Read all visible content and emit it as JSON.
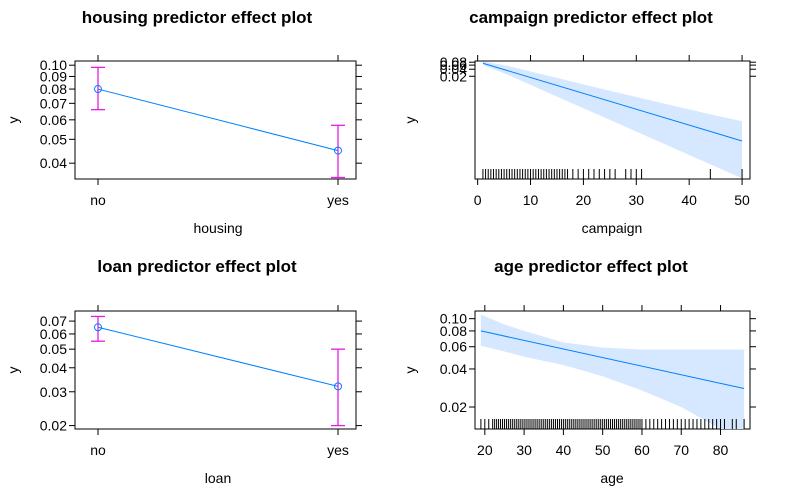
{
  "colors": {
    "line": "#0080ff",
    "point": "#0080ff",
    "errorbar": "#e020e0",
    "band": "#d6e8ff",
    "rug": "#000000"
  },
  "chart_data": [
    {
      "type": "line",
      "panel": "housing",
      "title": "housing predictor effect plot",
      "xlabel": "housing",
      "ylabel": "y",
      "categories": [
        "no",
        "yes"
      ],
      "values": [
        0.08,
        0.045
      ],
      "lower": [
        0.066,
        0.035
      ],
      "upper": [
        0.098,
        0.057
      ],
      "yticks": [
        "0.04",
        "0.05",
        "0.06",
        "0.07",
        "0.08",
        "0.09",
        "0.10"
      ],
      "ylim": [
        0.0345,
        0.104
      ],
      "yscale": "log"
    },
    {
      "type": "line",
      "panel": "campaign",
      "title": "campaign predictor effect plot",
      "xlabel": "campaign",
      "ylabel": "y",
      "x": [
        1,
        50
      ],
      "y": [
        0.072,
        3.4e-05
      ],
      "band_x": [
        1,
        5,
        10,
        15,
        20,
        25,
        30,
        35,
        40,
        45,
        50
      ],
      "band_lower": [
        0.06,
        0.027,
        0.0086,
        0.0027,
        0.00085,
        0.00027,
        8.5e-05,
        2.7e-05,
        8.5e-06,
        2.7e-06,
        8.5e-07
      ],
      "band_upper": [
        0.086,
        0.06,
        0.032,
        0.017,
        0.009,
        0.0048,
        0.0026,
        0.0014,
        0.00076,
        0.00042,
        0.00024
      ],
      "xticks": [
        "0",
        "10",
        "20",
        "30",
        "40",
        "50"
      ],
      "yticks": [
        "0.02",
        "0.04",
        "0.06",
        "0.08"
      ],
      "ylim": [
        8e-07,
        0.09
      ],
      "xlim": [
        -0.5,
        51.5
      ],
      "yscale": "log",
      "rug": [
        1,
        1.5,
        2,
        2.5,
        3,
        3.5,
        4,
        4.5,
        5,
        5.5,
        6,
        6.5,
        7,
        7.5,
        8,
        8.5,
        9,
        9.5,
        10,
        10.5,
        11,
        11.5,
        12,
        12.5,
        13,
        13.5,
        14,
        14.5,
        15,
        15.5,
        16,
        16.5,
        17,
        18,
        19,
        20,
        21,
        22,
        23,
        24,
        25,
        26,
        28,
        29,
        30,
        31,
        44,
        50
      ]
    },
    {
      "type": "line",
      "panel": "loan",
      "title": "loan predictor effect plot",
      "xlabel": "loan",
      "ylabel": "y",
      "categories": [
        "no",
        "yes"
      ],
      "values": [
        0.065,
        0.032
      ],
      "lower": [
        0.055,
        0.02
      ],
      "upper": [
        0.074,
        0.05
      ],
      "yticks": [
        "0.02",
        "0.03",
        "0.04",
        "0.05",
        "0.06",
        "0.07"
      ],
      "ylim": [
        0.0192,
        0.079
      ],
      "yscale": "log"
    },
    {
      "type": "line",
      "panel": "age",
      "title": "age predictor effect plot",
      "xlabel": "age",
      "ylabel": "y",
      "x": [
        19,
        86
      ],
      "y": [
        0.08,
        0.028
      ],
      "band_x": [
        19,
        25,
        30,
        40,
        50,
        60,
        70,
        80,
        86
      ],
      "band_lower": [
        0.061,
        0.055,
        0.05,
        0.043,
        0.035,
        0.027,
        0.02,
        0.013,
        0.009
      ],
      "band_upper": [
        0.108,
        0.09,
        0.08,
        0.065,
        0.059,
        0.057,
        0.057,
        0.057,
        0.057
      ],
      "xticks": [
        "20",
        "30",
        "40",
        "50",
        "60",
        "70",
        "80"
      ],
      "yticks": [
        "0.02",
        "0.04",
        "0.06",
        "0.08",
        "0.10"
      ],
      "ylim": [
        0.0134,
        0.115
      ],
      "xlim": [
        17.5,
        87.5
      ],
      "yscale": "log",
      "rug": [
        19,
        20,
        21,
        22,
        22.5,
        23,
        23.5,
        24,
        24.5,
        25,
        25.5,
        26,
        26.5,
        27,
        27.5,
        28,
        28.5,
        29,
        29.5,
        30,
        30.5,
        31,
        31.5,
        32,
        32.5,
        33,
        33.5,
        34,
        34.5,
        35,
        35.5,
        36,
        36.5,
        37,
        37.5,
        38,
        38.5,
        39,
        39.5,
        40,
        40.5,
        41,
        41.5,
        42,
        42.5,
        43,
        43.5,
        44,
        44.5,
        45,
        45.5,
        46,
        46.5,
        47,
        47.5,
        48,
        48.5,
        49,
        49.5,
        50,
        50.5,
        51,
        51.5,
        52,
        52.5,
        53,
        53.5,
        54,
        54.5,
        55,
        55.5,
        56,
        56.5,
        57,
        57.5,
        58,
        58.5,
        59,
        59.5,
        60,
        61,
        62,
        63,
        64,
        65,
        66,
        67,
        68,
        69,
        70,
        71,
        72,
        73,
        74,
        75,
        76,
        77,
        78,
        79,
        80,
        81,
        83,
        84,
        86
      ]
    }
  ]
}
